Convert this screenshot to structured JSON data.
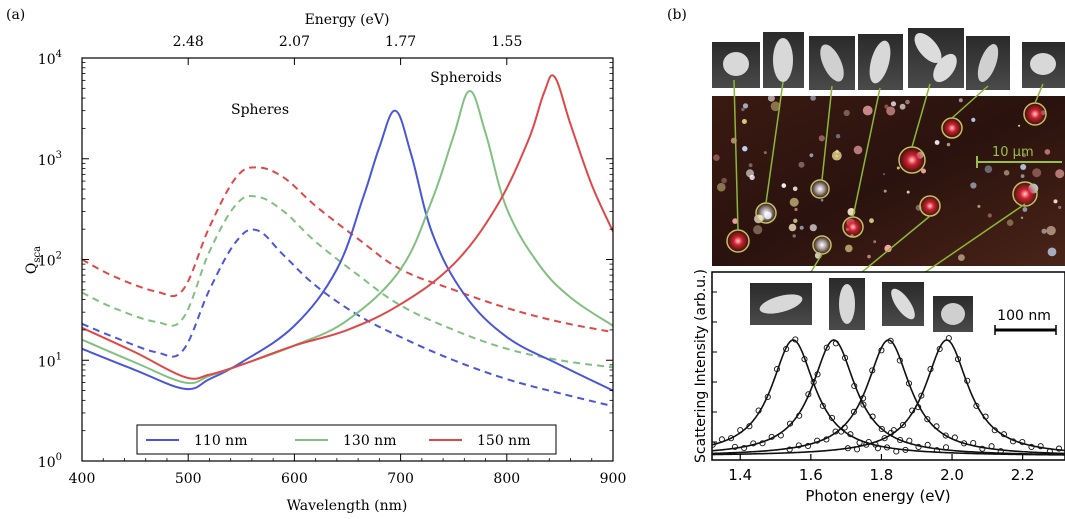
{
  "panel_a_label": "(a)",
  "panel_b_label": "(b)",
  "chart_data": [
    {
      "panel": "(a)",
      "type": "line",
      "xlabel": "Wavelength (nm)",
      "ylabel": "Q",
      "ylabel_sub": "sca",
      "top_axis_label": "Energy (eV)",
      "top_ticks": [
        {
          "label": "2.48",
          "wavelength": 500
        },
        {
          "label": "2.07",
          "wavelength": 600
        },
        {
          "label": "1.77",
          "wavelength": 700
        },
        {
          "label": "1.55",
          "wavelength": 800
        }
      ],
      "xlim": [
        400,
        900
      ],
      "xticks": [
        400,
        500,
        600,
        700,
        800,
        900
      ],
      "ylim": [
        1,
        10000
      ],
      "yscale": "log",
      "yticks": [
        {
          "value": 1,
          "base": "10",
          "exp": "0"
        },
        {
          "value": 10,
          "base": "10",
          "exp": "1"
        },
        {
          "value": 100,
          "base": "10",
          "exp": "2"
        },
        {
          "value": 1000,
          "base": "10",
          "exp": "3"
        },
        {
          "value": 10000,
          "base": "10",
          "exp": "4"
        }
      ],
      "grid": false,
      "legend_position": "bottom-center",
      "annotations": [
        {
          "text": "Spheres",
          "x": 560,
          "y": 520
        },
        {
          "text": "Spheroids",
          "x": 800,
          "y": 6800
        }
      ],
      "series": [
        {
          "name": "110 nm",
          "color": "#4a55d9",
          "style": "dashed",
          "x": [
            400,
            430,
            470,
            495,
            520,
            545,
            565,
            590,
            620,
            660,
            700,
            750,
            800,
            850,
            900
          ],
          "y": [
            23,
            17,
            12,
            12.5,
            50,
            150,
            195,
            110,
            55,
            28,
            17,
            10,
            6.5,
            4.7,
            3.5
          ]
        },
        {
          "name": "130 nm",
          "color": "#82c082",
          "style": "dashed",
          "x": [
            400,
            430,
            470,
            495,
            520,
            545,
            565,
            590,
            620,
            660,
            700,
            750,
            800,
            850,
            900
          ],
          "y": [
            47,
            33,
            24,
            26,
            120,
            350,
            420,
            300,
            150,
            70,
            35,
            20,
            13,
            10,
            8.5
          ]
        },
        {
          "name": "150 nm",
          "color": "#e04848",
          "style": "dashed",
          "x": [
            400,
            430,
            470,
            495,
            520,
            545,
            565,
            590,
            620,
            660,
            700,
            750,
            800,
            850,
            900
          ],
          "y": [
            100,
            68,
            48,
            50,
            210,
            650,
            820,
            650,
            340,
            160,
            80,
            50,
            33,
            24,
            19
          ]
        },
        {
          "name": "110 nm",
          "color": "#4a55d9",
          "style": "solid",
          "x": [
            400,
            450,
            497,
            520,
            550,
            600,
            640,
            665,
            680,
            695,
            710,
            730,
            760,
            800,
            850,
            900
          ],
          "y": [
            13,
            8,
            5.2,
            6.5,
            9.5,
            22,
            80,
            420,
            1300,
            3000,
            1100,
            180,
            45,
            17,
            9,
            5
          ]
        },
        {
          "name": "130 nm",
          "color": "#82c082",
          "style": "solid",
          "x": [
            400,
            450,
            497,
            520,
            550,
            600,
            650,
            700,
            730,
            750,
            765,
            780,
            800,
            830,
            860,
            900
          ],
          "y": [
            16,
            9.5,
            6,
            7,
            9,
            14,
            25,
            80,
            400,
            1700,
            4700,
            1800,
            320,
            90,
            42,
            22
          ]
        },
        {
          "name": "150 nm",
          "color": "#e04848",
          "style": "solid",
          "x": [
            400,
            450,
            497,
            520,
            550,
            600,
            650,
            700,
            750,
            790,
            820,
            835,
            845,
            860,
            880,
            900
          ],
          "y": [
            21,
            12,
            6.8,
            7.2,
            9,
            14,
            20,
            36,
            90,
            330,
            1500,
            4500,
            6500,
            2200,
            550,
            190
          ]
        }
      ],
      "legend": [
        {
          "label": "110 nm",
          "color": "#4a55d9"
        },
        {
          "label": "130 nm",
          "color": "#82c082"
        },
        {
          "label": "150 nm",
          "color": "#e04848"
        }
      ]
    },
    {
      "panel": "(b)",
      "type": "line",
      "xlabel": "Photon energy (eV)",
      "ylabel": "Scattering Intensity (arb.u.)",
      "xlim": [
        1.32,
        2.32
      ],
      "xticks": [
        "1.4",
        "1.6",
        "1.8",
        "2.0",
        "2.2"
      ],
      "scale_bar_label": "100 nm",
      "micrograph_scale_label": "10 µm",
      "peaks": [
        {
          "center": 1.55,
          "amplitude": 1.0
        },
        {
          "center": 1.665,
          "amplitude": 1.0
        },
        {
          "center": 1.82,
          "amplitude": 1.0
        },
        {
          "center": 1.985,
          "amplitude": 1.0
        }
      ]
    }
  ]
}
